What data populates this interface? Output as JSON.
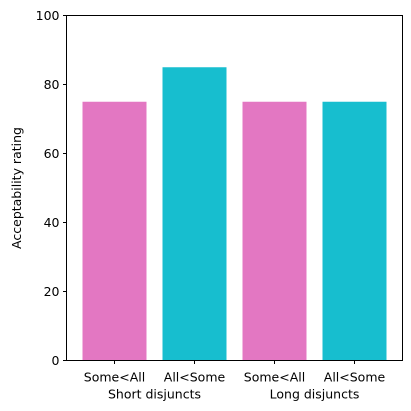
{
  "chart_data": {
    "type": "bar",
    "ylabel": "Acceptability rating",
    "ylim": [
      0,
      100
    ],
    "yticks": [
      0,
      20,
      40,
      60,
      80,
      100
    ],
    "grid": false,
    "legend": "none",
    "categories": [
      "Some<All",
      "All<Some",
      "Some<All",
      "All<Some"
    ],
    "groups": [
      {
        "label": "Short disjuncts",
        "categories": [
          0,
          1
        ]
      },
      {
        "label": "Long disjuncts",
        "categories": [
          2,
          3
        ]
      }
    ],
    "values": [
      75,
      85,
      75,
      75
    ],
    "colors": [
      "#e377c2",
      "#17becf",
      "#e377c2",
      "#17becf"
    ]
  }
}
